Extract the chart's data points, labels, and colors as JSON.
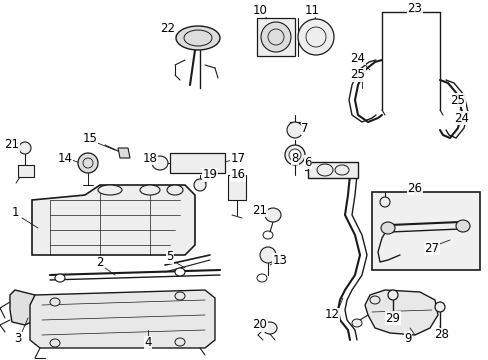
{
  "bg_color": "#ffffff",
  "line_color": "#1a1a1a",
  "text_color": "#000000",
  "font_size": 8.5,
  "figsize": [
    4.89,
    3.6
  ],
  "dpi": 100
}
